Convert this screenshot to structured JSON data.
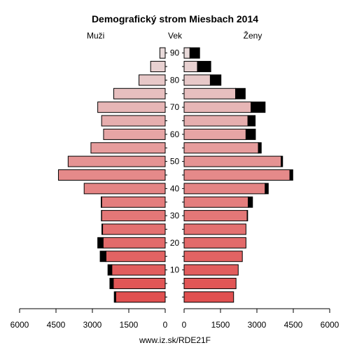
{
  "chart_data": {
    "type": "bar",
    "title": "Demografický strom Miesbach 2014",
    "left_label": "Muži",
    "center_label": "Vek",
    "right_label": "Ženy",
    "source": "www.iz.sk/RDE21F",
    "age_ticks": [
      "10",
      "20",
      "30",
      "40",
      "50",
      "60",
      "70",
      "80",
      "90"
    ],
    "x_ticks_left": [
      "6000",
      "4500",
      "3000",
      "1500",
      "0"
    ],
    "x_ticks_right": [
      "0",
      "1500",
      "3000",
      "4500",
      "6000"
    ],
    "xlim": [
      0,
      6000
    ],
    "age_groups": [
      "0-4",
      "5-9",
      "10-14",
      "15-19",
      "20-24",
      "25-29",
      "30-34",
      "35-39",
      "40-44",
      "45-49",
      "50-54",
      "55-59",
      "60-64",
      "65-69",
      "70-74",
      "75-79",
      "80-84",
      "85-89",
      "90+"
    ],
    "series": [
      {
        "name": "Muži",
        "values": [
          2040,
          2140,
          2200,
          2440,
          2560,
          2580,
          2620,
          2620,
          3340,
          4400,
          4000,
          3060,
          2540,
          2620,
          2780,
          2120,
          1080,
          600,
          220
        ]
      },
      {
        "name": "Muži (čierna časť)",
        "values": [
          60,
          140,
          160,
          240,
          220,
          30,
          10,
          20,
          0,
          0,
          0,
          0,
          0,
          0,
          0,
          0,
          0,
          0,
          0
        ]
      },
      {
        "name": "Ženy",
        "values": [
          2040,
          2140,
          2230,
          2400,
          2550,
          2550,
          2600,
          2640,
          3340,
          4360,
          4000,
          3060,
          2550,
          2630,
          2760,
          2120,
          1080,
          550,
          240
        ]
      },
      {
        "name": "Ženy (čierna časť)",
        "values": [
          0,
          0,
          0,
          0,
          0,
          0,
          20,
          180,
          130,
          120,
          60,
          120,
          390,
          300,
          580,
          400,
          440,
          550,
          400
        ]
      }
    ],
    "colors": {
      "young": "#e05050",
      "middle": "#e58a8a",
      "old": "#e8dada",
      "black": "#000000"
    }
  }
}
